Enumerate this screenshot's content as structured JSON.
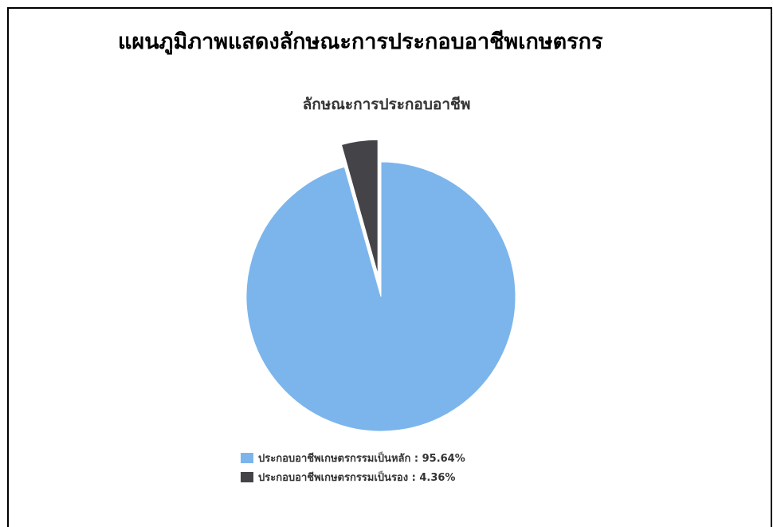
{
  "page_title": "แผนภูมิภาพแสดงลักษณะการประกอบอาชีพเกษตรกร",
  "chart_data": {
    "type": "pie",
    "title": "ลักษณะการประกอบอาชีพ",
    "legend_position": "bottom",
    "slices": [
      {
        "label": "ประกอบอาชีพเกษตรกรรมเป็นหลัก",
        "value": 95.64,
        "color": "#7cb5ec",
        "exploded": false
      },
      {
        "label": "ประกอบอาชีพเกษตรกรรมเป็นรอง",
        "value": 4.36,
        "color": "#434348",
        "exploded": true
      }
    ],
    "legend": [
      {
        "text": "ประกอบอาชีพเกษตรกรรมเป็นหลัก : 95.64%",
        "color": "#7cb5ec"
      },
      {
        "text": "ประกอบอาชีพเกษตรกรรมเป็นรอง : 4.36%",
        "color": "#434348"
      }
    ]
  }
}
